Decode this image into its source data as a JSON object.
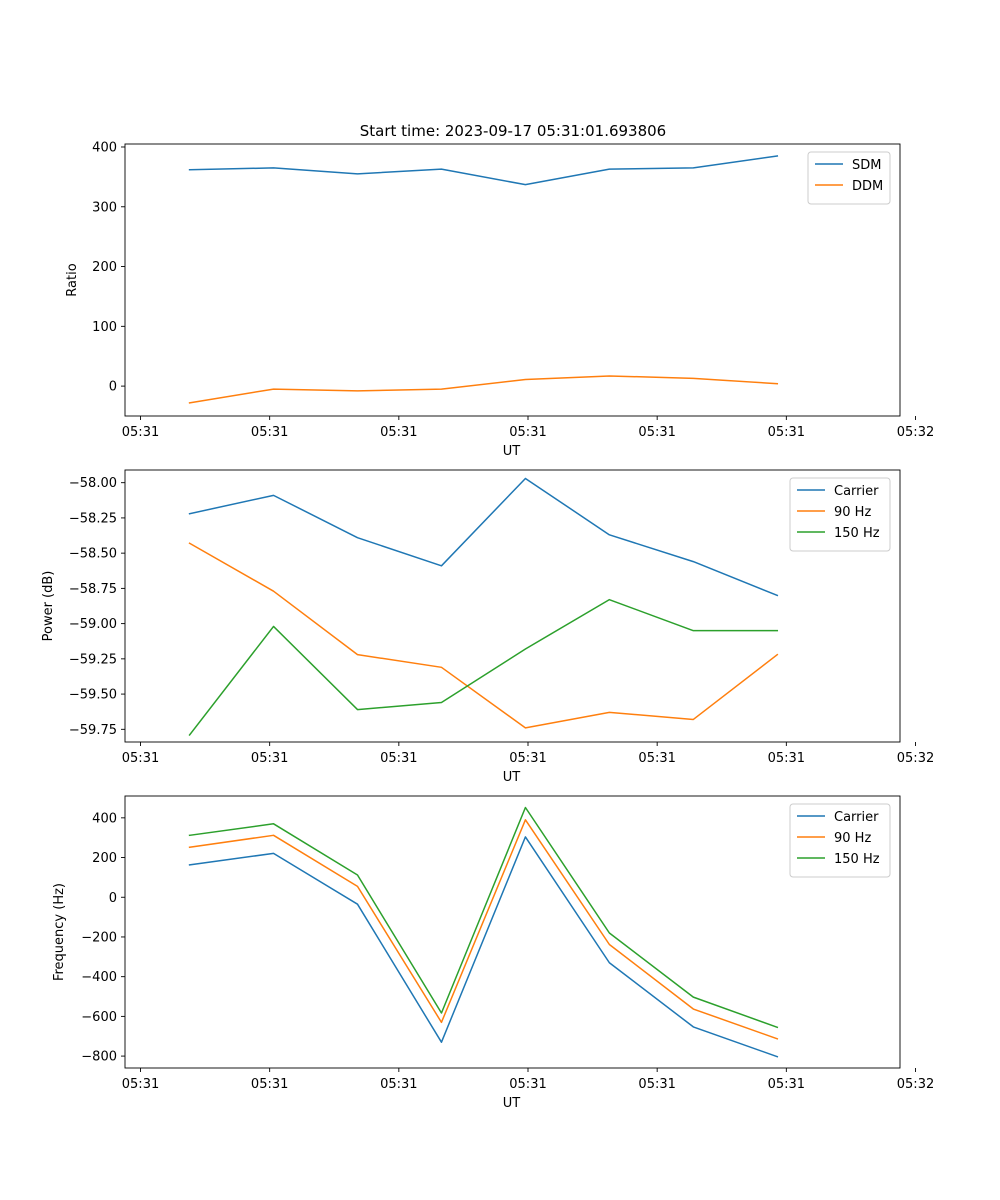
{
  "figure": {
    "title": "Start time: 2023-09-17 05:31:01.693806"
  },
  "colors": {
    "blue": "#1f77b4",
    "orange": "#ff7f0e",
    "green": "#2ca02c"
  },
  "chart_data": [
    {
      "type": "line",
      "title": "Start time: 2023-09-17 05:31:01.693806",
      "xlabel": "UT",
      "ylabel": "Ratio",
      "x": [
        0.5,
        1.15,
        1.8,
        2.45,
        3.1,
        3.75,
        4.4,
        5.05
      ],
      "xlim": [
        0,
        6.0
      ],
      "xticks": [
        0.12,
        1.12,
        2.12,
        3.12,
        4.12,
        5.12,
        6.12
      ],
      "xtick_labels": [
        "05:31",
        "05:31",
        "05:31",
        "05:31",
        "05:31",
        "05:31",
        "05:32"
      ],
      "ylim": [
        -50,
        405
      ],
      "yticks": [
        0,
        100,
        200,
        300,
        400
      ],
      "ytick_labels": [
        "0",
        "100",
        "200",
        "300",
        "400"
      ],
      "legend_loc": "upper right",
      "series": [
        {
          "name": "SDM",
          "color": "#1f77b4",
          "values": [
            362,
            365,
            355,
            363,
            337,
            363,
            365,
            385
          ]
        },
        {
          "name": "DDM",
          "color": "#ff7f0e",
          "values": [
            -28,
            -5,
            -8,
            -5,
            11,
            17,
            13,
            4
          ]
        }
      ]
    },
    {
      "type": "line",
      "title": "",
      "xlabel": "UT",
      "ylabel": "Power (dB)",
      "x": [
        0.5,
        1.15,
        1.8,
        2.45,
        3.1,
        3.75,
        4.4,
        5.05
      ],
      "xlim": [
        0,
        6.0
      ],
      "xticks": [
        0.12,
        1.12,
        2.12,
        3.12,
        4.12,
        5.12,
        6.12
      ],
      "xtick_labels": [
        "05:31",
        "05:31",
        "05:31",
        "05:31",
        "05:31",
        "05:31",
        "05:32"
      ],
      "ylim": [
        -59.84,
        -57.91
      ],
      "yticks": [
        -58.0,
        -58.25,
        -58.5,
        -58.75,
        -59.0,
        -59.25,
        -59.5,
        -59.75
      ],
      "ytick_labels": [
        "−58.00",
        "−58.25",
        "−58.50",
        "−58.75",
        "−59.00",
        "−59.25",
        "−59.50",
        "−59.75"
      ],
      "legend_loc": "upper right",
      "series": [
        {
          "name": "Carrier",
          "color": "#1f77b4",
          "values": [
            -58.22,
            -58.09,
            -58.39,
            -58.59,
            -57.97,
            -58.37,
            -58.56,
            -58.8
          ]
        },
        {
          "name": "90 Hz",
          "color": "#ff7f0e",
          "values": [
            -58.43,
            -58.77,
            -59.22,
            -59.31,
            -59.74,
            -59.63,
            -59.68,
            -59.22
          ]
        },
        {
          "name": "150 Hz",
          "color": "#2ca02c",
          "values": [
            -59.79,
            -59.02,
            -59.61,
            -59.56,
            -59.18,
            -58.83,
            -59.05,
            -59.05
          ]
        }
      ]
    },
    {
      "type": "line",
      "title": "",
      "xlabel": "UT",
      "ylabel": "Frequency (Hz)",
      "x": [
        0.5,
        1.15,
        1.8,
        2.45,
        3.1,
        3.75,
        4.4,
        5.05
      ],
      "xlim": [
        0,
        6.0
      ],
      "xticks": [
        0.12,
        1.12,
        2.12,
        3.12,
        4.12,
        5.12,
        6.12
      ],
      "xtick_labels": [
        "05:31",
        "05:31",
        "05:31",
        "05:31",
        "05:31",
        "05:31",
        "05:32"
      ],
      "ylim": [
        -860,
        510
      ],
      "yticks": [
        400,
        200,
        0,
        -200,
        -400,
        -600,
        -800
      ],
      "ytick_labels": [
        "400",
        "200",
        "0",
        "−200",
        "−400",
        "−600",
        "−800"
      ],
      "legend_loc": "upper right",
      "series": [
        {
          "name": "Carrier",
          "color": "#1f77b4",
          "values": [
            163,
            221,
            -35,
            -730,
            304,
            -330,
            -653,
            -803
          ]
        },
        {
          "name": "90 Hz",
          "color": "#ff7f0e",
          "values": [
            252,
            312,
            55,
            -630,
            390,
            -238,
            -563,
            -713
          ]
        },
        {
          "name": "150 Hz",
          "color": "#2ca02c",
          "values": [
            312,
            370,
            112,
            -583,
            452,
            -180,
            -503,
            -655
          ]
        }
      ]
    }
  ]
}
